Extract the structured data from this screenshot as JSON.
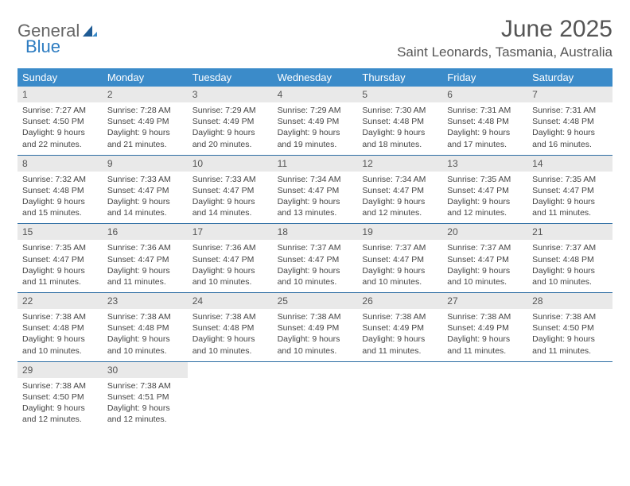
{
  "logo": {
    "word1": "General",
    "word2": "Blue"
  },
  "title": "June 2025",
  "location": "Saint Leonards, Tasmania, Australia",
  "colors": {
    "header_bg": "#3b8bc9",
    "header_text": "#ffffff",
    "daynum_bg": "#e9e9e9",
    "daynum_text": "#555555",
    "body_text": "#444444",
    "rule": "#2d6da3",
    "logo_blue": "#2d7cc1"
  },
  "weekdays": [
    "Sunday",
    "Monday",
    "Tuesday",
    "Wednesday",
    "Thursday",
    "Friday",
    "Saturday"
  ],
  "weeks": [
    [
      {
        "n": "1",
        "sr": "7:27 AM",
        "ss": "4:50 PM",
        "dl": "9 hours and 22 minutes."
      },
      {
        "n": "2",
        "sr": "7:28 AM",
        "ss": "4:49 PM",
        "dl": "9 hours and 21 minutes."
      },
      {
        "n": "3",
        "sr": "7:29 AM",
        "ss": "4:49 PM",
        "dl": "9 hours and 20 minutes."
      },
      {
        "n": "4",
        "sr": "7:29 AM",
        "ss": "4:49 PM",
        "dl": "9 hours and 19 minutes."
      },
      {
        "n": "5",
        "sr": "7:30 AM",
        "ss": "4:48 PM",
        "dl": "9 hours and 18 minutes."
      },
      {
        "n": "6",
        "sr": "7:31 AM",
        "ss": "4:48 PM",
        "dl": "9 hours and 17 minutes."
      },
      {
        "n": "7",
        "sr": "7:31 AM",
        "ss": "4:48 PM",
        "dl": "9 hours and 16 minutes."
      }
    ],
    [
      {
        "n": "8",
        "sr": "7:32 AM",
        "ss": "4:48 PM",
        "dl": "9 hours and 15 minutes."
      },
      {
        "n": "9",
        "sr": "7:33 AM",
        "ss": "4:47 PM",
        "dl": "9 hours and 14 minutes."
      },
      {
        "n": "10",
        "sr": "7:33 AM",
        "ss": "4:47 PM",
        "dl": "9 hours and 14 minutes."
      },
      {
        "n": "11",
        "sr": "7:34 AM",
        "ss": "4:47 PM",
        "dl": "9 hours and 13 minutes."
      },
      {
        "n": "12",
        "sr": "7:34 AM",
        "ss": "4:47 PM",
        "dl": "9 hours and 12 minutes."
      },
      {
        "n": "13",
        "sr": "7:35 AM",
        "ss": "4:47 PM",
        "dl": "9 hours and 12 minutes."
      },
      {
        "n": "14",
        "sr": "7:35 AM",
        "ss": "4:47 PM",
        "dl": "9 hours and 11 minutes."
      }
    ],
    [
      {
        "n": "15",
        "sr": "7:35 AM",
        "ss": "4:47 PM",
        "dl": "9 hours and 11 minutes."
      },
      {
        "n": "16",
        "sr": "7:36 AM",
        "ss": "4:47 PM",
        "dl": "9 hours and 11 minutes."
      },
      {
        "n": "17",
        "sr": "7:36 AM",
        "ss": "4:47 PM",
        "dl": "9 hours and 10 minutes."
      },
      {
        "n": "18",
        "sr": "7:37 AM",
        "ss": "4:47 PM",
        "dl": "9 hours and 10 minutes."
      },
      {
        "n": "19",
        "sr": "7:37 AM",
        "ss": "4:47 PM",
        "dl": "9 hours and 10 minutes."
      },
      {
        "n": "20",
        "sr": "7:37 AM",
        "ss": "4:47 PM",
        "dl": "9 hours and 10 minutes."
      },
      {
        "n": "21",
        "sr": "7:37 AM",
        "ss": "4:48 PM",
        "dl": "9 hours and 10 minutes."
      }
    ],
    [
      {
        "n": "22",
        "sr": "7:38 AM",
        "ss": "4:48 PM",
        "dl": "9 hours and 10 minutes."
      },
      {
        "n": "23",
        "sr": "7:38 AM",
        "ss": "4:48 PM",
        "dl": "9 hours and 10 minutes."
      },
      {
        "n": "24",
        "sr": "7:38 AM",
        "ss": "4:48 PM",
        "dl": "9 hours and 10 minutes."
      },
      {
        "n": "25",
        "sr": "7:38 AM",
        "ss": "4:49 PM",
        "dl": "9 hours and 10 minutes."
      },
      {
        "n": "26",
        "sr": "7:38 AM",
        "ss": "4:49 PM",
        "dl": "9 hours and 11 minutes."
      },
      {
        "n": "27",
        "sr": "7:38 AM",
        "ss": "4:49 PM",
        "dl": "9 hours and 11 minutes."
      },
      {
        "n": "28",
        "sr": "7:38 AM",
        "ss": "4:50 PM",
        "dl": "9 hours and 11 minutes."
      }
    ],
    [
      {
        "n": "29",
        "sr": "7:38 AM",
        "ss": "4:50 PM",
        "dl": "9 hours and 12 minutes."
      },
      {
        "n": "30",
        "sr": "7:38 AM",
        "ss": "4:51 PM",
        "dl": "9 hours and 12 minutes."
      },
      null,
      null,
      null,
      null,
      null
    ]
  ],
  "labels": {
    "sunrise_prefix": "Sunrise: ",
    "sunset_prefix": "Sunset: ",
    "daylight_prefix": "Daylight: "
  }
}
